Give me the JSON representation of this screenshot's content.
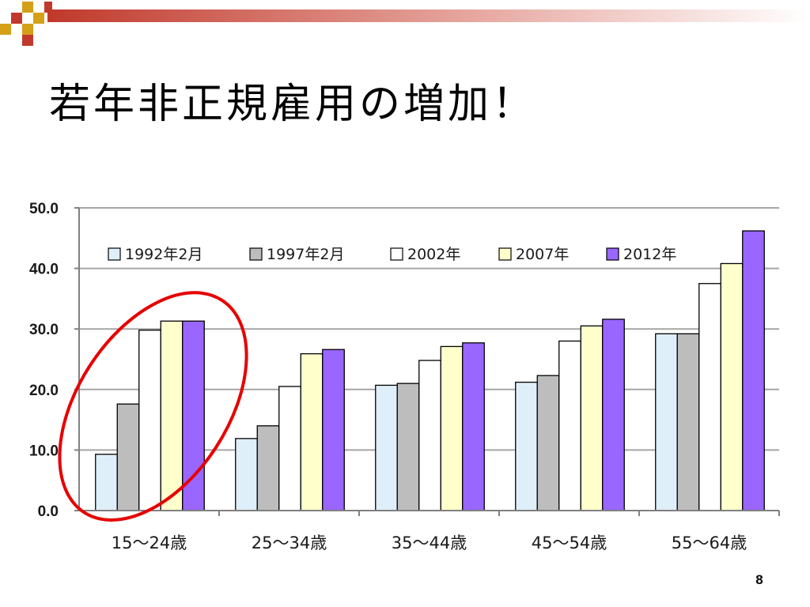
{
  "slide": {
    "title": "若年非正規雇用の増加！",
    "page_number": "8"
  },
  "colors": {
    "accent": "#e60000",
    "deco_dark": "#c0392b",
    "deco_gold": "#d4a017",
    "gridline": "#a6a6a6"
  },
  "chart_data": {
    "type": "bar",
    "categories": [
      "15～24歳",
      "25～34歳",
      "35～44歳",
      "45～54歳",
      "55～64歳"
    ],
    "series": [
      {
        "name": "1992年2月",
        "color": "#dfeff9",
        "values": [
          9.3,
          11.9,
          20.7,
          21.2,
          29.2
        ]
      },
      {
        "name": "1997年2月",
        "color": "#bdbdbd",
        "values": [
          17.6,
          14.0,
          21.0,
          22.3,
          29.2
        ]
      },
      {
        "name": "2002年",
        "color": "#ffffff",
        "values": [
          29.8,
          20.5,
          24.8,
          28.0,
          37.5
        ]
      },
      {
        "name": "2007年",
        "color": "#ffffcc",
        "values": [
          31.3,
          25.9,
          27.1,
          30.5,
          40.8
        ]
      },
      {
        "name": "2012年",
        "color": "#9966ff",
        "values": [
          31.3,
          26.6,
          27.7,
          31.6,
          46.2
        ]
      }
    ],
    "y_ticks": [
      "0.0",
      "10.0",
      "20.0",
      "30.0",
      "40.0",
      "50.0"
    ],
    "ylim": [
      0,
      50
    ],
    "grid": true,
    "legend_position": "top-left",
    "highlighted_category": "15～24歳",
    "highlight_color": "#e60000"
  }
}
